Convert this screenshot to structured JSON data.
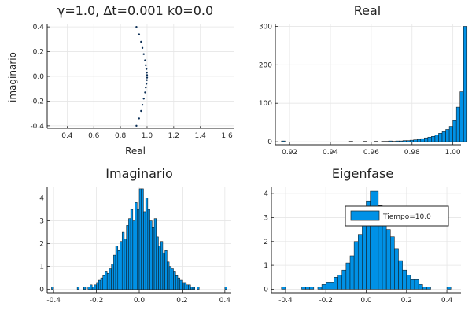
{
  "chart_data": [
    {
      "type": "scatter",
      "title": "γ=1.0,   Δt=0.001 k0=0.0",
      "xlabel": "Real",
      "ylabel": "imaginario",
      "xlim": [
        0.25,
        1.65
      ],
      "ylim": [
        -0.42,
        0.42
      ],
      "xticks": [
        "0.4",
        "0.6",
        "0.8",
        "1.0",
        "1.2",
        "1.4",
        "1.6"
      ],
      "yticks": [
        "-0.4",
        "-0.2",
        "0.0",
        "0.2",
        "0.4"
      ],
      "grid": true,
      "marker_color": "#0b2e55",
      "series": [
        {
          "x": [
            0.92,
            0.94,
            0.955,
            0.965,
            0.975,
            0.985,
            0.99,
            0.995,
            0.998,
            1.0,
            1.0,
            0.998,
            0.995,
            0.99,
            0.985,
            0.975,
            0.965,
            0.955,
            0.94,
            0.92
          ],
          "y": [
            0.4,
            0.34,
            0.28,
            0.23,
            0.18,
            0.13,
            0.09,
            0.06,
            0.03,
            0.01,
            -0.01,
            -0.03,
            -0.06,
            -0.09,
            -0.13,
            -0.18,
            -0.23,
            -0.28,
            -0.34,
            -0.4
          ]
        }
      ]
    },
    {
      "type": "bar",
      "title": "Real",
      "xlim": [
        0.913,
        1.004
      ],
      "ylim": [
        -8,
        305
      ],
      "xticks": [
        "0.92",
        "0.94",
        "0.96",
        "0.98",
        "1.00"
      ],
      "yticks": [
        "0",
        "100",
        "200",
        "300"
      ],
      "grid": true,
      "bar_color": "#0091e6",
      "bin_start": 0.916,
      "bin_width": 0.00175,
      "values": [
        2,
        0,
        0,
        0,
        0,
        0,
        0,
        0,
        0,
        0,
        0,
        0,
        0,
        0,
        0,
        0,
        0,
        0,
        0,
        1,
        0,
        0,
        0,
        1,
        0,
        0,
        1,
        0,
        1,
        1,
        2,
        1,
        2,
        2,
        3,
        3,
        4,
        5,
        6,
        8,
        10,
        12,
        14,
        18,
        22,
        26,
        32,
        40,
        55,
        90,
        130,
        300
      ]
    },
    {
      "type": "bar",
      "title": "Imaginario",
      "xlim": [
        -0.43,
        0.43
      ],
      "ylim": [
        -0.15,
        4.5
      ],
      "xticks": [
        "-0.4",
        "-0.2",
        "0.0",
        "0.2",
        "0.4"
      ],
      "yticks": [
        "0",
        "1",
        "2",
        "3",
        "4"
      ],
      "grid": true,
      "bar_color": "#0091e6",
      "bin_start": -0.41,
      "bin_width": 0.01,
      "values": [
        0.1,
        0,
        0,
        0,
        0,
        0,
        0,
        0,
        0,
        0,
        0,
        0,
        0.1,
        0,
        0,
        0.1,
        0,
        0.1,
        0.2,
        0.1,
        0.2,
        0.3,
        0.4,
        0.5,
        0.6,
        0.8,
        0.7,
        0.9,
        1.1,
        1.5,
        1.9,
        1.7,
        2.1,
        2.5,
        2.2,
        2.8,
        3.1,
        3.5,
        3.0,
        3.8,
        3.5,
        4.4,
        4.4,
        3.4,
        4.0,
        3.5,
        3.0,
        2.7,
        3.1,
        2.3,
        1.9,
        2.1,
        1.6,
        1.7,
        1.2,
        1.0,
        0.9,
        0.8,
        0.6,
        0.5,
        0.4,
        0.3,
        0.3,
        0.2,
        0.2,
        0.1,
        0.1,
        0,
        0.1,
        0,
        0,
        0,
        0,
        0,
        0,
        0,
        0,
        0,
        0,
        0,
        0,
        0.1
      ]
    },
    {
      "type": "bar",
      "title": "Eigenfase",
      "xlim": [
        -0.47,
        0.47
      ],
      "ylim": [
        -0.15,
        4.3
      ],
      "xticks": [
        "-0.4",
        "-0.2",
        "0.0",
        "0.2",
        "0.4"
      ],
      "yticks": [
        "0",
        "1",
        "2",
        "3",
        "4"
      ],
      "grid": true,
      "bar_color": "#0091e6",
      "legend": "inside-top-right",
      "series": [
        {
          "name": "Tiempo=10.0"
        }
      ],
      "bin_start": -0.42,
      "bin_width": 0.02,
      "values": [
        0.1,
        0,
        0,
        0,
        0,
        0.1,
        0.1,
        0.1,
        0,
        0.1,
        0.2,
        0.3,
        0.3,
        0.5,
        0.6,
        0.8,
        1.1,
        1.4,
        2.0,
        2.3,
        3.2,
        3.7,
        4.1,
        4.1,
        3.5,
        3.0,
        2.5,
        2.2,
        1.7,
        1.2,
        0.8,
        0.6,
        0.4,
        0.4,
        0.2,
        0.1,
        0.1,
        0,
        0,
        0,
        0,
        0.1
      ]
    }
  ]
}
